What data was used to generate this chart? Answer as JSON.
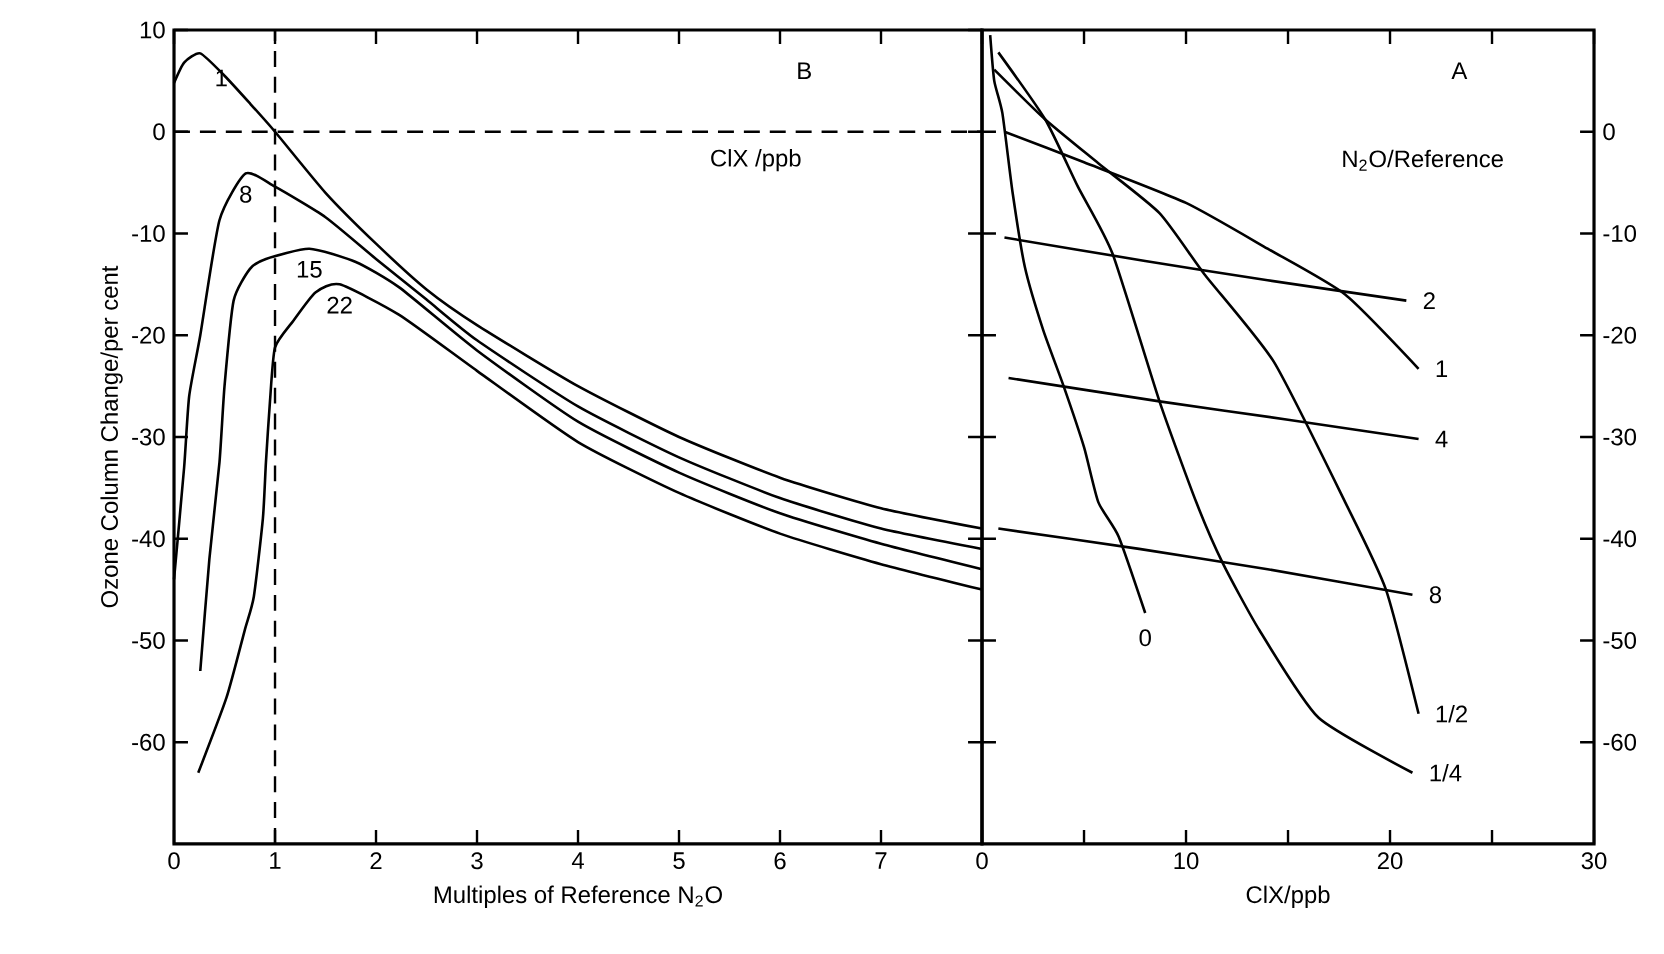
{
  "chart_data": [
    {
      "type": "line",
      "xlabel": "Multiples of Reference N$_{2}$O",
      "ylabel": "Ozone Column Change/per cent",
      "legend_title": "ClX /ppb",
      "annotations": [
        "B"
      ],
      "xlim": [
        0,
        8
      ],
      "ylim": [
        -70,
        10
      ],
      "xticks": [
        0,
        1,
        2,
        3,
        4,
        5,
        6,
        7
      ],
      "yticks": [
        10,
        0,
        -10,
        -20,
        -30,
        -40,
        -50,
        -60
      ],
      "ref_lines": [
        {
          "axis": "y",
          "value": 0,
          "line_style": "dashed"
        },
        {
          "axis": "x",
          "value": 1,
          "line_style": "dashed"
        }
      ],
      "series": [
        {
          "name": "1",
          "color": "#000000",
          "x": [
            0,
            0.1,
            0.26,
            0.5,
            0.75,
            1.0,
            1.5,
            2.0,
            2.5,
            3,
            4,
            5,
            6,
            7,
            8
          ],
          "values": [
            4.8,
            6.8,
            7.7,
            5.5,
            2.8,
            0,
            -6,
            -11,
            -15.5,
            -19,
            -25,
            -30,
            -34,
            -37,
            -39
          ]
        },
        {
          "name": "8",
          "color": "#000000",
          "x": [
            0,
            0.1,
            0.15,
            0.26,
            0.45,
            0.71,
            1.0,
            1.5,
            2,
            2.5,
            3,
            4,
            5,
            6,
            7,
            8
          ],
          "values": [
            -44,
            -33,
            -26,
            -20,
            -8.7,
            -4.1,
            -5.4,
            -8.4,
            -12.5,
            -16.5,
            -20.5,
            -27,
            -32,
            -36,
            -39,
            -41
          ]
        },
        {
          "name": "15",
          "color": "#000000",
          "x": [
            0.26,
            0.35,
            0.45,
            0.5,
            0.59,
            0.75,
            0.91,
            1.34,
            1.8,
            2.23,
            3,
            4,
            5,
            6,
            7,
            8
          ],
          "values": [
            -53,
            -42,
            -32.5,
            -25,
            -16.6,
            -13.5,
            -12.5,
            -11.5,
            -12.8,
            -15.3,
            -21.5,
            -28.5,
            -33.5,
            -37.5,
            -40.5,
            -43
          ]
        },
        {
          "name": "22",
          "color": "#000000",
          "x": [
            0.24,
            0.52,
            0.7,
            0.79,
            0.88,
            0.91,
            0.95,
            1.0,
            1.18,
            1.4,
            1.64,
            2.23,
            3,
            4,
            5,
            6,
            7,
            8
          ],
          "values": [
            -63,
            -55.6,
            -49,
            -45.7,
            -38,
            -32.5,
            -26.5,
            -21.2,
            -18.6,
            -15.8,
            -15,
            -18,
            -23.5,
            -30.5,
            -35.5,
            -39.5,
            -42.5,
            -45
          ]
        }
      ]
    },
    {
      "type": "line",
      "xlabel": "ClX/ppb",
      "legend_title": "N$_{2}$O/Reference",
      "annotations": [
        "A"
      ],
      "xlim": [
        0,
        30
      ],
      "ylim": [
        -70,
        10
      ],
      "xticks": [
        0,
        {
          "value": 5,
          "label": null
        },
        10,
        {
          "value": 15,
          "label": null
        },
        20,
        {
          "value": 25,
          "label": null
        },
        30
      ],
      "yticks": [
        0,
        -10,
        -20,
        -30,
        -40,
        -50,
        -60
      ],
      "series": [
        {
          "name": "2",
          "color": "#000000",
          "x": [
            1.1,
            8,
            14,
            20.8
          ],
          "values": [
            -10.4,
            -12.7,
            -14.6,
            -16.6
          ]
        },
        {
          "name": "1",
          "color": "#000000",
          "x": [
            1.1,
            5,
            10,
            14,
            17.8,
            21.4
          ],
          "values": [
            0,
            -3,
            -7,
            -11.5,
            -16,
            -23.3
          ]
        },
        {
          "name": "4",
          "color": "#000000",
          "x": [
            1.3,
            8.7,
            15,
            21.4
          ],
          "values": [
            -24.2,
            -26.5,
            -28.3,
            -30.2
          ]
        },
        {
          "name": "8",
          "color": "#000000",
          "x": [
            0.8,
            7.7,
            14,
            21.1
          ],
          "values": [
            -39,
            -41,
            -43,
            -45.5
          ]
        },
        {
          "name": "0",
          "color": "#000000",
          "x": [
            0.4,
            0.6,
            1,
            1.5,
            2.1,
            3,
            4,
            5,
            5.7,
            6.7,
            8
          ],
          "values": [
            9.5,
            5,
            1.8,
            -6,
            -13.3,
            -19.5,
            -25,
            -31,
            -36.4,
            -39.8,
            -47.3
          ]
        },
        {
          "name": "1/2",
          "color": "#000000",
          "x": [
            0.6,
            3.1,
            5.7,
            8.7,
            10.9,
            14.3,
            17.8,
            19.8,
            21.4
          ],
          "values": [
            6.1,
            1.2,
            -3.1,
            -8,
            -14,
            -22.6,
            -36.4,
            -45,
            -57.2
          ]
        },
        {
          "name": "1/4",
          "color": "#000000",
          "x": [
            0.8,
            3.1,
            4.7,
            6.4,
            8.7,
            10.5,
            11.8,
            13.6,
            16.5,
            21.1
          ],
          "values": [
            7.8,
            1.2,
            -5.4,
            -12,
            -26.5,
            -36.4,
            -42.4,
            -49,
            -57.6,
            -63
          ]
        }
      ]
    }
  ]
}
